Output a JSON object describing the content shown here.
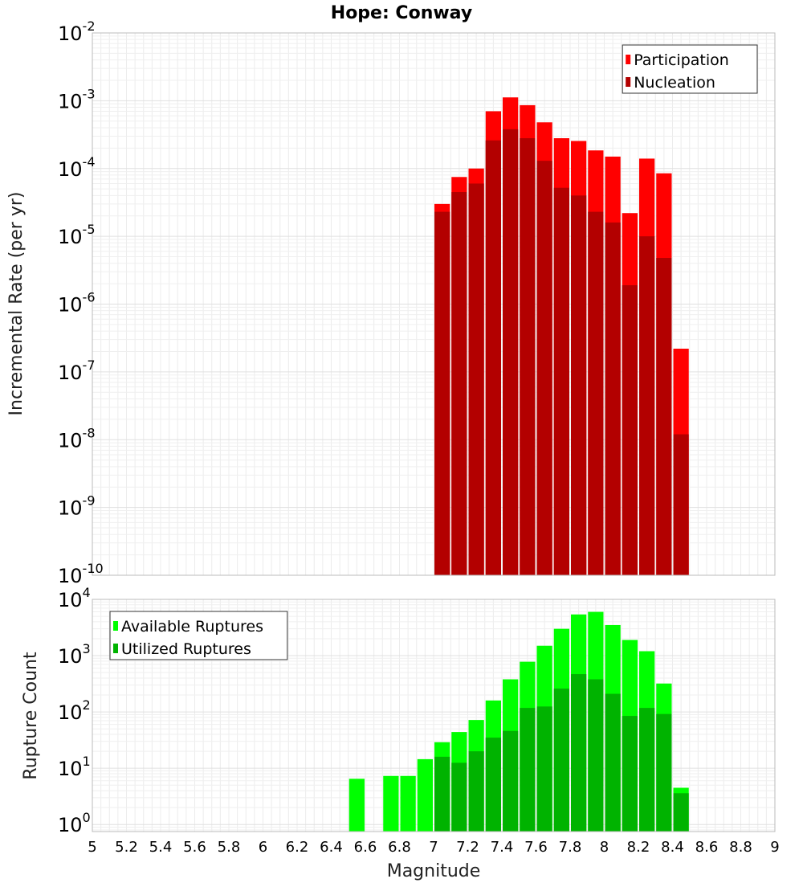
{
  "chart_data": [
    {
      "type": "bar",
      "title": "Hope: Conway",
      "ylabel": "Incremental Rate (per yr)",
      "yscale": "log",
      "ylim": [
        1e-10,
        0.01
      ],
      "xlim": [
        5,
        9
      ],
      "grid": true,
      "legend_position": "top-right",
      "bar_width": 0.1,
      "x": [
        7.0,
        7.1,
        7.2,
        7.3,
        7.4,
        7.5,
        7.6,
        7.7,
        7.8,
        7.9,
        8.0,
        8.1,
        8.2,
        8.3,
        8.4
      ],
      "series": [
        {
          "name": "Participation",
          "color": "#ff0000",
          "values": [
            3e-05,
            7.5e-05,
            0.0001,
            0.0007,
            0.00112,
            0.00086,
            0.00048,
            0.00028,
            0.000255,
            0.000185,
            0.00015,
            2.2e-05,
            0.00014,
            8.5e-05,
            2.2e-07
          ]
        },
        {
          "name": "Nucleation",
          "color": "#b30000",
          "values": [
            2.3e-05,
            4.5e-05,
            6e-05,
            0.00026,
            0.00038,
            0.00028,
            0.00013,
            5.2e-05,
            4e-05,
            2.3e-05,
            1.6e-05,
            1.9e-06,
            1e-05,
            4.8e-06,
            1.2e-08
          ]
        }
      ]
    },
    {
      "type": "bar",
      "xlabel": "Magnitude",
      "ylabel": "Rupture Count",
      "yscale": "log",
      "ylim": [
        0.75,
        10000
      ],
      "xlim": [
        5,
        9
      ],
      "grid": true,
      "legend_position": "top-left",
      "bar_width": 0.1,
      "x": [
        6.5,
        6.7,
        6.8,
        6.9,
        7.0,
        7.1,
        7.2,
        7.3,
        7.4,
        7.5,
        7.6,
        7.7,
        7.8,
        7.9,
        8.0,
        8.1,
        8.2,
        8.3,
        8.4
      ],
      "series": [
        {
          "name": "Available Ruptures",
          "color": "#00ff00",
          "values": [
            6.5,
            7.3,
            7.3,
            14.5,
            29,
            44,
            72,
            160,
            380,
            780,
            1500,
            3000,
            5400,
            6000,
            3500,
            1900,
            1200,
            320,
            4.5
          ]
        },
        {
          "name": "Utilized Ruptures",
          "color": "#00b300",
          "values": [
            0,
            0,
            0,
            0,
            16,
            12.5,
            20,
            35,
            46,
            118,
            125,
            260,
            470,
            380,
            210,
            85,
            118,
            92,
            3.6
          ]
        }
      ],
      "xticks": [
        "5",
        "5.2",
        "5.4",
        "5.6",
        "5.8",
        "6",
        "6.2",
        "6.4",
        "6.6",
        "6.8",
        "7",
        "7.2",
        "7.4",
        "7.6",
        "7.8",
        "8",
        "8.2",
        "8.4",
        "8.6",
        "8.8",
        "9"
      ]
    }
  ]
}
